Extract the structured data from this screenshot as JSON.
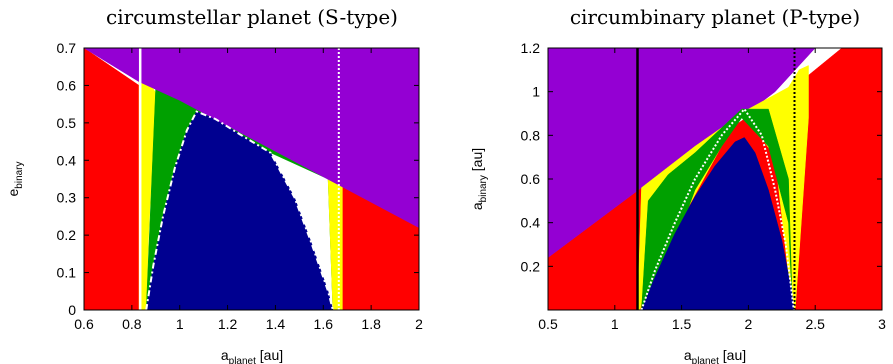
{
  "chart_data": [
    {
      "type": "heatmap",
      "title": "circumstellar planet (S-type)",
      "xlabel_base": "a",
      "xlabel_sub": "planet",
      "xlabel_unit": " [au]",
      "ylabel_base": "e",
      "ylabel_sub": "binary",
      "xlim": [
        0.6,
        2.0
      ],
      "ylim": [
        0.0,
        0.7
      ],
      "xticks": [
        0.6,
        0.8,
        1,
        1.2,
        1.4,
        1.6,
        1.8,
        2
      ],
      "xtick_labels": [
        "0.6",
        "0.8",
        "1",
        "1.2",
        "1.4",
        "1.6",
        "1.8",
        "2"
      ],
      "yticks": [
        0,
        0.1,
        0.2,
        0.3,
        0.4,
        0.5,
        0.6,
        0.7
      ],
      "ytick_labels": [
        "0",
        "0.1",
        "0.2",
        "0.3",
        "0.4",
        "0.5",
        "0.6",
        "0.7"
      ],
      "regions": [
        {
          "color": "#ff0000",
          "polygon": [
            [
              0.6,
              0
            ],
            [
              0.83,
              0
            ],
            [
              0.83,
              0.6
            ],
            [
              0.6,
              0.7
            ]
          ]
        },
        {
          "color": "#ff0000",
          "polygon": [
            [
              1.68,
              0
            ],
            [
              2.0,
              0
            ],
            [
              2.0,
              0.22
            ],
            [
              1.68,
              0.33
            ]
          ]
        },
        {
          "color": "#ffff00",
          "polygon": [
            [
              0.83,
              0
            ],
            [
              0.86,
              0
            ],
            [
              0.87,
              0.2
            ],
            [
              0.9,
              0.58
            ],
            [
              0.88,
              0.6
            ],
            [
              0.83,
              0.61
            ]
          ]
        },
        {
          "color": "#00a000",
          "polygon": [
            [
              0.86,
              0
            ],
            [
              1.07,
              0.53
            ],
            [
              1.38,
              0.42
            ],
            [
              1.62,
              0.35
            ],
            [
              1.64,
              0
            ],
            [
              1.66,
              0
            ],
            [
              1.65,
              0.36
            ],
            [
              0.9,
              0.6
            ]
          ]
        },
        {
          "color": "#ffff00",
          "polygon": [
            [
              1.64,
              0
            ],
            [
              1.68,
              0
            ],
            [
              1.68,
              0.33
            ],
            [
              1.62,
              0.35
            ]
          ]
        },
        {
          "color": "#000090",
          "polygon": [
            [
              0.86,
              0
            ],
            [
              0.89,
              0.12
            ],
            [
              0.93,
              0.25
            ],
            [
              0.98,
              0.38
            ],
            [
              1.03,
              0.48
            ],
            [
              1.07,
              0.53
            ],
            [
              1.15,
              0.51
            ],
            [
              1.25,
              0.47
            ],
            [
              1.38,
              0.42
            ],
            [
              1.48,
              0.3
            ],
            [
              1.55,
              0.18
            ],
            [
              1.62,
              0.05
            ],
            [
              1.64,
              0
            ]
          ]
        },
        {
          "color": "#9400d3",
          "polygon": [
            [
              0.6,
              0.7
            ],
            [
              2.0,
              0.7
            ],
            [
              2.0,
              0.22
            ],
            [
              1.0,
              0.56
            ],
            [
              0.83,
              0.61
            ],
            [
              0.6,
              0.7
            ]
          ]
        }
      ],
      "boundary_lines": [
        {
          "style": "solid",
          "color": "#ffffff",
          "points": [
            [
              0.835,
              0
            ],
            [
              0.835,
              0.7
            ]
          ]
        },
        {
          "style": "dotted",
          "color": "#ffffff",
          "points": [
            [
              1.665,
              0
            ],
            [
              1.665,
              0.7
            ]
          ]
        },
        {
          "style": "dashdot",
          "color": "#ffffff",
          "points": [
            [
              0.86,
              0
            ],
            [
              0.89,
              0.12
            ],
            [
              0.93,
              0.25
            ],
            [
              0.98,
              0.38
            ],
            [
              1.03,
              0.48
            ],
            [
              1.07,
              0.53
            ],
            [
              1.15,
              0.51
            ],
            [
              1.25,
              0.47
            ],
            [
              1.38,
              0.42
            ],
            [
              1.48,
              0.3
            ],
            [
              1.55,
              0.18
            ],
            [
              1.62,
              0.05
            ],
            [
              1.64,
              0
            ]
          ]
        }
      ]
    },
    {
      "type": "heatmap",
      "title": "circumbinary planet (P-type)",
      "xlabel_base": "a",
      "xlabel_sub": "planet",
      "xlabel_unit": " [au]",
      "ylabel_base": "a",
      "ylabel_sub": "binary",
      "ylabel_unit": " [au]",
      "xlim": [
        0.5,
        3.0
      ],
      "ylim": [
        0.0,
        1.2
      ],
      "xticks": [
        0.5,
        1,
        1.5,
        2,
        2.5,
        3
      ],
      "xtick_labels": [
        "0.5",
        "1",
        "1.5",
        "2",
        "2.5",
        "3"
      ],
      "yticks": [
        0.2,
        0.4,
        0.6,
        0.8,
        1,
        1.2
      ],
      "ytick_labels": [
        "0.2",
        "0.4",
        "0.6",
        "0.8",
        "1",
        "1.2"
      ],
      "regions": [
        {
          "color": "#ff0000",
          "polygon": [
            [
              0.5,
              0
            ],
            [
              3.0,
              0
            ],
            [
              3.0,
              1.2
            ],
            [
              2.7,
              1.2
            ],
            [
              2.4,
              1.05
            ],
            [
              1.2,
              0.56
            ],
            [
              0.5,
              0.24
            ]
          ]
        },
        {
          "color": "#9400d3",
          "polygon": [
            [
              0.5,
              0.24
            ],
            [
              1.2,
              0.56
            ],
            [
              1.6,
              0.72
            ],
            [
              2.2,
              1.0
            ],
            [
              2.5,
              1.2
            ],
            [
              0.5,
              1.2
            ]
          ]
        },
        {
          "color": "#ffff00",
          "polygon": [
            [
              1.17,
              0
            ],
            [
              1.2,
              0.56
            ],
            [
              1.6,
              0.75
            ],
            [
              2.0,
              0.92
            ],
            [
              2.3,
              1.02
            ],
            [
              2.38,
              1.1
            ],
            [
              2.45,
              1.12
            ],
            [
              2.45,
              0.88
            ],
            [
              2.35,
              0
            ],
            [
              2.33,
              0
            ],
            [
              2.2,
              0.7
            ],
            [
              1.95,
              0.92
            ],
            [
              1.22,
              0.1
            ],
            [
              1.19,
              0
            ]
          ]
        },
        {
          "color": "#00a000",
          "polygon": [
            [
              1.2,
              0
            ],
            [
              1.45,
              0.3
            ],
            [
              1.6,
              0.55
            ],
            [
              1.8,
              0.75
            ],
            [
              1.95,
              0.88
            ],
            [
              2.15,
              0.75
            ],
            [
              2.3,
              0.4
            ],
            [
              2.33,
              0
            ],
            [
              2.3,
              0.6
            ],
            [
              2.15,
              0.92
            ],
            [
              1.95,
              0.92
            ],
            [
              1.6,
              0.72
            ],
            [
              1.4,
              0.62
            ],
            [
              1.25,
              0.5
            ]
          ]
        },
        {
          "color": "#000090",
          "polygon": [
            [
              1.2,
              0
            ],
            [
              1.3,
              0.15
            ],
            [
              1.45,
              0.35
            ],
            [
              1.6,
              0.52
            ],
            [
              1.75,
              0.66
            ],
            [
              1.9,
              0.77
            ],
            [
              1.97,
              0.79
            ],
            [
              2.05,
              0.72
            ],
            [
              2.15,
              0.55
            ],
            [
              2.25,
              0.32
            ],
            [
              2.32,
              0.1
            ],
            [
              2.34,
              0
            ]
          ]
        }
      ],
      "boundary_lines": [
        {
          "style": "solid",
          "color": "#000000",
          "points": [
            [
              1.17,
              0
            ],
            [
              1.17,
              1.2
            ]
          ]
        },
        {
          "style": "dotted",
          "color": "#000000",
          "points": [
            [
              2.345,
              0
            ],
            [
              2.345,
              1.2
            ]
          ]
        },
        {
          "style": "dotted",
          "color": "#ffffff",
          "points": [
            [
              1.2,
              0
            ],
            [
              1.3,
              0.18
            ],
            [
              1.45,
              0.4
            ],
            [
              1.6,
              0.6
            ],
            [
              1.8,
              0.8
            ],
            [
              1.97,
              0.92
            ],
            [
              2.1,
              0.8
            ],
            [
              2.2,
              0.55
            ],
            [
              2.28,
              0.3
            ],
            [
              2.33,
              0.05
            ],
            [
              2.34,
              0
            ]
          ]
        }
      ]
    }
  ]
}
